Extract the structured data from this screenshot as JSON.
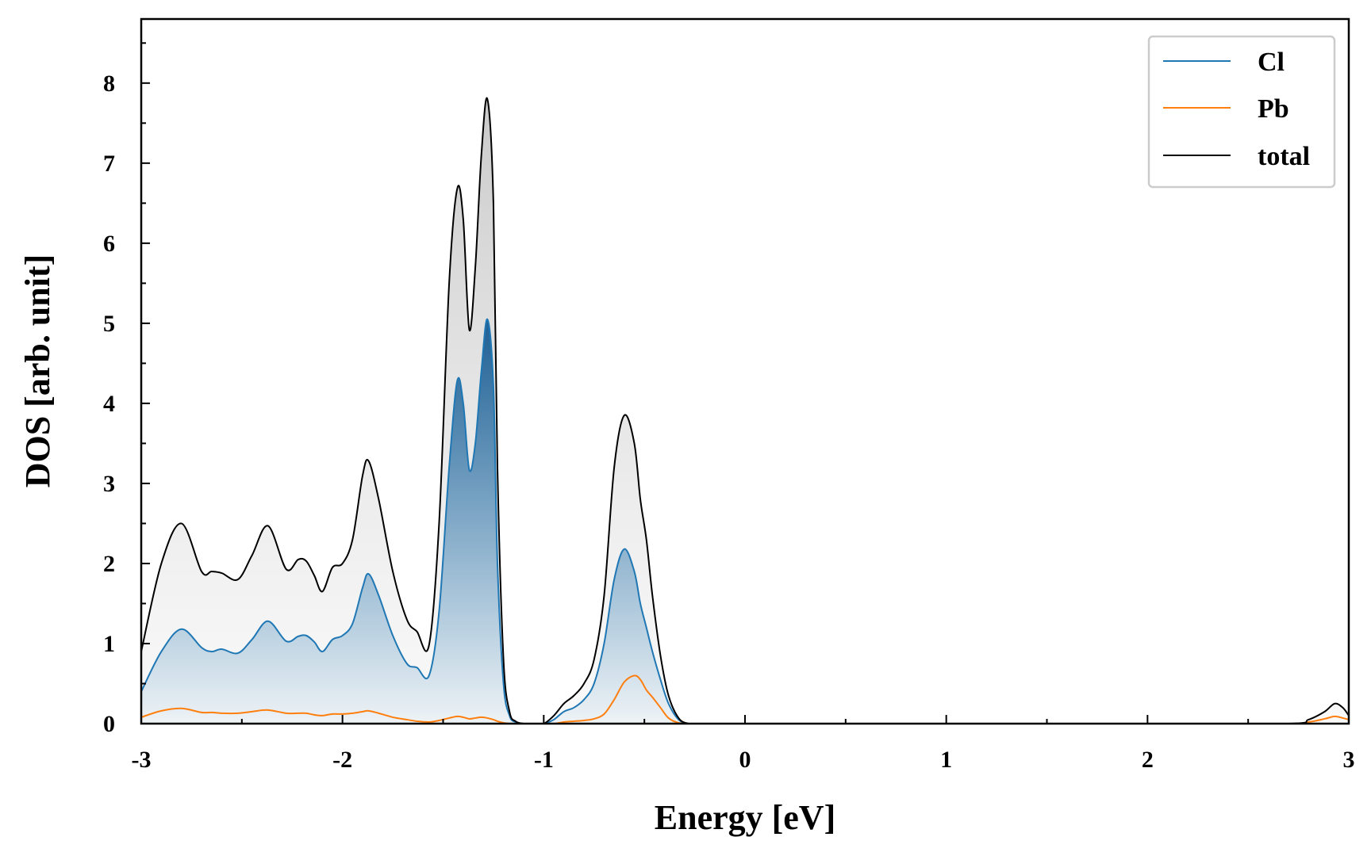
{
  "chart_data": {
    "type": "area",
    "xlabel": "Energy [eV]",
    "ylabel": "DOS [arb. unit]",
    "xlim": [
      -3,
      3
    ],
    "ylim": [
      0,
      8.8
    ],
    "xticks": [
      -3,
      -2,
      -1,
      0,
      1,
      2,
      3
    ],
    "xtick_labels": [
      "-3",
      "-2",
      "-1",
      "0",
      "1",
      "2",
      "3"
    ],
    "yticks": [
      0,
      1,
      2,
      3,
      4,
      5,
      6,
      7,
      8
    ],
    "ytick_labels": [
      "0",
      "1",
      "2",
      "3",
      "4",
      "5",
      "6",
      "7",
      "8"
    ],
    "grid": false,
    "legend_position": "top-right",
    "legend": [
      "Cl",
      "Pb",
      "total"
    ],
    "x": [
      -3.0,
      -2.9,
      -2.8,
      -2.7,
      -2.65,
      -2.6,
      -2.52,
      -2.45,
      -2.37,
      -2.28,
      -2.22,
      -2.18,
      -2.14,
      -2.1,
      -2.05,
      -2.0,
      -1.95,
      -1.9,
      -1.87,
      -1.82,
      -1.75,
      -1.68,
      -1.63,
      -1.57,
      -1.52,
      -1.47,
      -1.43,
      -1.4,
      -1.37,
      -1.34,
      -1.31,
      -1.28,
      -1.25,
      -1.23,
      -1.2,
      -1.17,
      -1.14,
      -1.1,
      -1.05,
      -1.0,
      -0.95,
      -0.9,
      -0.85,
      -0.8,
      -0.75,
      -0.7,
      -0.65,
      -0.6,
      -0.55,
      -0.52,
      -0.49,
      -0.46,
      -0.42,
      -0.38,
      -0.33,
      -0.28,
      -0.23,
      -0.18,
      -0.14,
      -0.1,
      0.0,
      1.0,
      2.0,
      2.7,
      2.8,
      2.88,
      2.93,
      2.97,
      3.0
    ],
    "series": [
      {
        "name": "Cl",
        "color": "#1f77b4",
        "values": [
          0.4,
          0.9,
          1.18,
          0.95,
          0.9,
          0.93,
          0.88,
          1.05,
          1.28,
          1.03,
          1.09,
          1.1,
          1.02,
          0.9,
          1.05,
          1.1,
          1.25,
          1.7,
          1.87,
          1.6,
          1.1,
          0.75,
          0.7,
          0.6,
          1.4,
          3.2,
          4.28,
          4.0,
          3.17,
          3.5,
          4.4,
          5.05,
          4.2,
          2.0,
          0.5,
          0.1,
          0.02,
          0.0,
          0.0,
          0.0,
          0.05,
          0.15,
          0.2,
          0.3,
          0.5,
          1.0,
          1.8,
          2.18,
          1.9,
          1.5,
          1.2,
          0.9,
          0.55,
          0.25,
          0.05,
          0.0,
          0.0,
          0.0,
          0.0,
          0.0,
          0.0,
          0.0,
          0.0,
          0.0,
          0.0,
          0.0,
          0.0,
          0.0,
          0.0
        ]
      },
      {
        "name": "Pb",
        "color": "#ff7f0e",
        "values": [
          0.08,
          0.16,
          0.19,
          0.14,
          0.14,
          0.13,
          0.13,
          0.15,
          0.17,
          0.13,
          0.13,
          0.13,
          0.11,
          0.1,
          0.12,
          0.12,
          0.13,
          0.15,
          0.16,
          0.13,
          0.08,
          0.05,
          0.03,
          0.02,
          0.04,
          0.07,
          0.09,
          0.08,
          0.06,
          0.07,
          0.08,
          0.07,
          0.05,
          0.03,
          0.01,
          0.0,
          0.0,
          0.0,
          0.0,
          0.0,
          0.0,
          0.02,
          0.03,
          0.04,
          0.06,
          0.12,
          0.3,
          0.52,
          0.6,
          0.55,
          0.42,
          0.33,
          0.2,
          0.07,
          0.01,
          0.0,
          0.0,
          0.0,
          0.0,
          0.0,
          0.0,
          0.0,
          0.0,
          0.0,
          0.02,
          0.06,
          0.09,
          0.07,
          0.05
        ]
      },
      {
        "name": "total",
        "color": "#000000",
        "values": [
          0.9,
          2.0,
          2.5,
          1.9,
          1.9,
          1.88,
          1.8,
          2.1,
          2.47,
          1.93,
          2.05,
          2.03,
          1.85,
          1.65,
          1.95,
          2.0,
          2.3,
          3.1,
          3.28,
          2.8,
          1.9,
          1.3,
          1.15,
          0.98,
          2.5,
          5.5,
          6.68,
          6.3,
          4.92,
          5.7,
          7.1,
          7.8,
          6.5,
          3.2,
          0.8,
          0.15,
          0.03,
          0.0,
          0.0,
          0.0,
          0.1,
          0.25,
          0.35,
          0.5,
          0.8,
          1.6,
          3.2,
          3.85,
          3.5,
          2.8,
          2.3,
          1.6,
          0.85,
          0.35,
          0.07,
          0.0,
          0.0,
          0.0,
          0.0,
          0.0,
          0.0,
          0.0,
          0.0,
          0.0,
          0.05,
          0.15,
          0.25,
          0.2,
          0.1
        ]
      }
    ]
  }
}
